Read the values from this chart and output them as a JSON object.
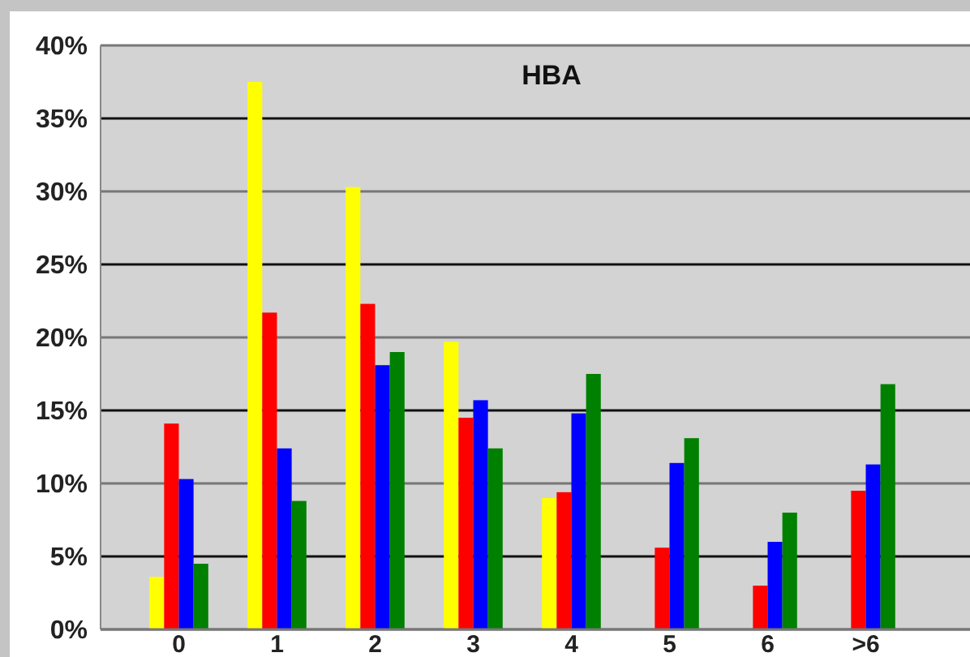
{
  "chart_data": {
    "type": "bar",
    "title": "HBA",
    "categories": [
      "0",
      "1",
      "2",
      "3",
      "4",
      "5",
      "6",
      ">6"
    ],
    "series": [
      {
        "color": "#ffff00",
        "values": [
          3.6,
          37.5,
          30.3,
          19.7,
          9.0,
          0,
          0,
          0
        ]
      },
      {
        "color": "#ff0000",
        "values": [
          14.1,
          21.7,
          22.3,
          14.5,
          9.4,
          5.6,
          3.0,
          9.5
        ]
      },
      {
        "color": "#0000ff",
        "values": [
          10.3,
          12.4,
          18.1,
          15.7,
          14.8,
          11.4,
          6.0,
          11.3
        ]
      },
      {
        "color": "#008000",
        "values": [
          4.5,
          8.8,
          19.0,
          12.4,
          17.5,
          13.1,
          8.0,
          16.8
        ]
      }
    ],
    "ylim": [
      0,
      40
    ],
    "yticks": [
      {
        "value": 0,
        "label": "0%"
      },
      {
        "value": 5,
        "label": "5%"
      },
      {
        "value": 10,
        "label": "10%"
      },
      {
        "value": 15,
        "label": "15%"
      },
      {
        "value": 20,
        "label": "20%"
      },
      {
        "value": 25,
        "label": "25%"
      },
      {
        "value": 30,
        "label": "30%"
      },
      {
        "value": 35,
        "label": "35%"
      },
      {
        "value": 40,
        "label": "40%"
      }
    ],
    "grid": "y"
  }
}
